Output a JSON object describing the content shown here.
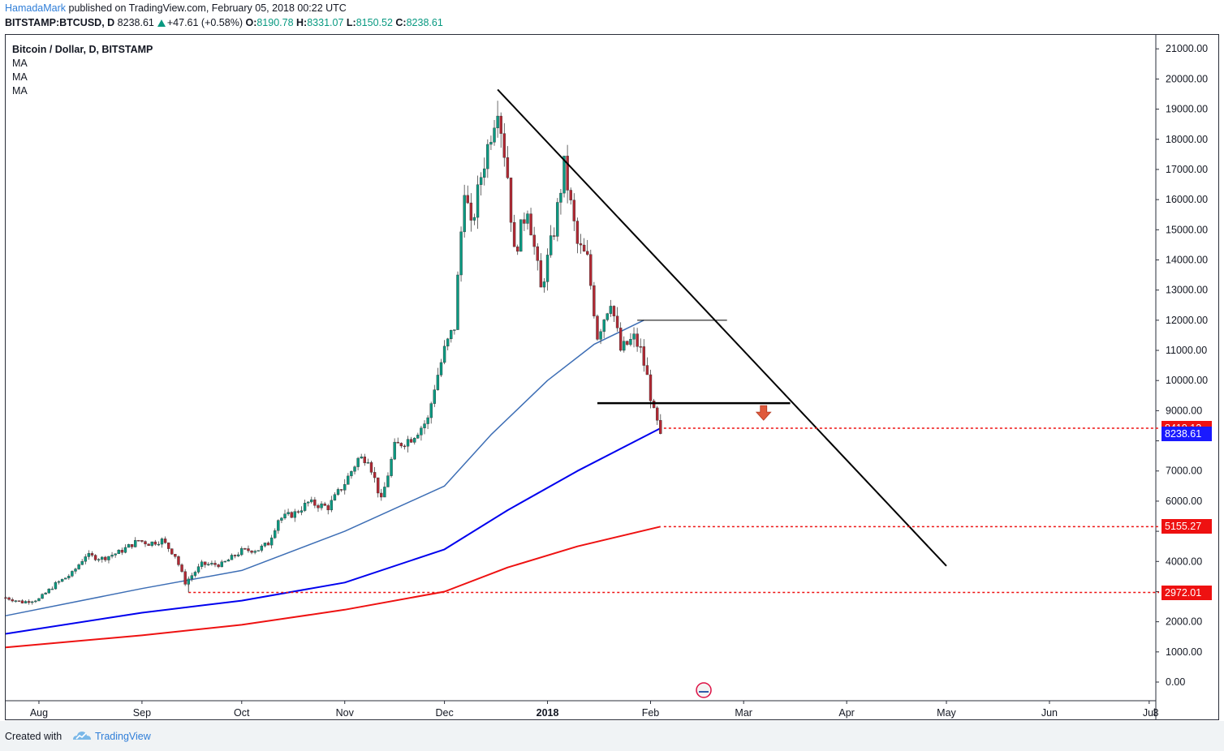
{
  "header": {
    "author": "HamadaMark",
    "published_text": " published on TradingView.com, February 05, 2018 00:22 UTC",
    "symbol_line": "BITSTAMP:BTCUSD, D",
    "last": "8238.61",
    "change": "+47.61 (+0.58%)",
    "open_label": "O:",
    "open": "8190.78",
    "high_label": "H:",
    "high": "8331.07",
    "low_label": "L:",
    "low": "8150.52",
    "close_label": "C:",
    "close": "8238.61"
  },
  "legend": {
    "title": "Bitcoin / Dollar, D, BITSTAMP",
    "items": [
      "MA",
      "MA",
      "MA"
    ]
  },
  "footer": {
    "created_with": "Created with",
    "brand": "TradingView"
  },
  "colors": {
    "up": "#089981",
    "down": "#b22833",
    "ma_fast": "#3d6eb5",
    "ma_mid": "#0000ee",
    "ma_slow": "#ee1111",
    "level": "#ee1111",
    "price_marker": "#1a1aff"
  },
  "chart_data": {
    "type": "candlestick",
    "title": "Bitcoin / Dollar, D, BITSTAMP",
    "y_axis": {
      "min": -500,
      "max": 21500,
      "ticks": [
        0,
        1000,
        2000,
        3000,
        4000,
        5000,
        6000,
        7000,
        8000,
        9000,
        10000,
        11000,
        12000,
        13000,
        14000,
        15000,
        16000,
        17000,
        18000,
        19000,
        20000,
        21000
      ],
      "tick_labels": [
        "0.00",
        "1000.00",
        "2000.00",
        "",
        "4000.00",
        "",
        "6000.00",
        "7000.00",
        "",
        "9000.00",
        "10000.00",
        "11000.00",
        "12000.00",
        "13000.00",
        "14000.00",
        "15000.00",
        "16000.00",
        "17000.00",
        "18000.00",
        "19000.00",
        "20000.00",
        "21000.00"
      ]
    },
    "x_axis": {
      "start": "2017-07-22",
      "end": "2018-07-03",
      "ticks": [
        {
          "date": "2017-08-01",
          "label": "Aug",
          "bold": false
        },
        {
          "date": "2017-09-01",
          "label": "Sep",
          "bold": false
        },
        {
          "date": "2017-10-01",
          "label": "Oct",
          "bold": false
        },
        {
          "date": "2017-11-01",
          "label": "Nov",
          "bold": false
        },
        {
          "date": "2017-12-01",
          "label": "Dec",
          "bold": false
        },
        {
          "date": "2018-01-01",
          "label": "2018",
          "bold": true
        },
        {
          "date": "2018-02-01",
          "label": "Feb",
          "bold": false
        },
        {
          "date": "2018-03-01",
          "label": "Mar",
          "bold": false
        },
        {
          "date": "2018-04-01",
          "label": "Apr",
          "bold": false
        },
        {
          "date": "2018-05-01",
          "label": "May",
          "bold": false
        },
        {
          "date": "2018-06-01",
          "label": "Jun",
          "bold": false
        },
        {
          "date": "2018-07-01",
          "label": "Jul",
          "bold": false
        },
        {
          "date": "2018-07-03",
          "label": "3",
          "bold": false
        }
      ]
    },
    "closes": [
      {
        "date": "2017-07-22",
        "close": 2800
      },
      {
        "date": "2017-07-27",
        "close": 2650
      },
      {
        "date": "2017-08-01",
        "close": 2750
      },
      {
        "date": "2017-08-06",
        "close": 3250
      },
      {
        "date": "2017-08-11",
        "close": 3600
      },
      {
        "date": "2017-08-15",
        "close": 4200
      },
      {
        "date": "2017-08-20",
        "close": 4100
      },
      {
        "date": "2017-08-25",
        "close": 4300
      },
      {
        "date": "2017-08-31",
        "close": 4700
      },
      {
        "date": "2017-09-03",
        "close": 4600
      },
      {
        "date": "2017-09-07",
        "close": 4700
      },
      {
        "date": "2017-09-11",
        "close": 4200
      },
      {
        "date": "2017-09-14",
        "close": 3300
      },
      {
        "date": "2017-09-19",
        "close": 3900
      },
      {
        "date": "2017-09-25",
        "close": 3900
      },
      {
        "date": "2017-10-01",
        "close": 4350
      },
      {
        "date": "2017-10-06",
        "close": 4400
      },
      {
        "date": "2017-10-09",
        "close": 4600
      },
      {
        "date": "2017-10-12",
        "close": 5400
      },
      {
        "date": "2017-10-17",
        "close": 5600
      },
      {
        "date": "2017-10-21",
        "close": 5950
      },
      {
        "date": "2017-10-27",
        "close": 5800
      },
      {
        "date": "2017-11-01",
        "close": 6600
      },
      {
        "date": "2017-11-05",
        "close": 7400
      },
      {
        "date": "2017-11-08",
        "close": 7450
      },
      {
        "date": "2017-11-12",
        "close": 6000
      },
      {
        "date": "2017-11-16",
        "close": 7800
      },
      {
        "date": "2017-11-21",
        "close": 8100
      },
      {
        "date": "2017-11-26",
        "close": 8700
      },
      {
        "date": "2017-11-28",
        "close": 9800
      },
      {
        "date": "2017-12-01",
        "close": 11000
      },
      {
        "date": "2017-12-04",
        "close": 11800
      },
      {
        "date": "2017-12-07",
        "close": 16500
      },
      {
        "date": "2017-12-09",
        "close": 15000
      },
      {
        "date": "2017-12-12",
        "close": 16800
      },
      {
        "date": "2017-12-17",
        "close": 19200
      },
      {
        "date": "2017-12-20",
        "close": 16800
      },
      {
        "date": "2017-12-22",
        "close": 14200
      },
      {
        "date": "2017-12-26",
        "close": 15800
      },
      {
        "date": "2017-12-30",
        "close": 13000
      },
      {
        "date": "2018-01-03",
        "close": 15000
      },
      {
        "date": "2018-01-06",
        "close": 17100
      },
      {
        "date": "2018-01-10",
        "close": 14500
      },
      {
        "date": "2018-01-13",
        "close": 14000
      },
      {
        "date": "2018-01-16",
        "close": 11500
      },
      {
        "date": "2018-01-20",
        "close": 12700
      },
      {
        "date": "2018-01-23",
        "close": 11000
      },
      {
        "date": "2018-01-27",
        "close": 11400
      },
      {
        "date": "2018-01-29",
        "close": 11000
      },
      {
        "date": "2018-01-31",
        "close": 10100
      },
      {
        "date": "2018-02-02",
        "close": 8900
      },
      {
        "date": "2018-02-04",
        "close": 8238.61
      }
    ],
    "moving_averages": [
      {
        "name": "MA",
        "color": "#3d6eb5",
        "points": [
          {
            "date": "2017-07-22",
            "value": 2200
          },
          {
            "date": "2017-09-01",
            "value": 3100
          },
          {
            "date": "2017-10-01",
            "value": 3700
          },
          {
            "date": "2017-11-01",
            "value": 5000
          },
          {
            "date": "2017-12-01",
            "value": 6500
          },
          {
            "date": "2017-12-15",
            "value": 8200
          },
          {
            "date": "2018-01-01",
            "value": 10000
          },
          {
            "date": "2018-01-15",
            "value": 11200
          },
          {
            "date": "2018-01-30",
            "value": 12000
          }
        ]
      },
      {
        "name": "MA",
        "color": "#0000ee",
        "points": [
          {
            "date": "2017-07-22",
            "value": 1600
          },
          {
            "date": "2017-09-01",
            "value": 2300
          },
          {
            "date": "2017-10-01",
            "value": 2700
          },
          {
            "date": "2017-11-01",
            "value": 3300
          },
          {
            "date": "2017-12-01",
            "value": 4400
          },
          {
            "date": "2017-12-20",
            "value": 5700
          },
          {
            "date": "2018-01-10",
            "value": 7000
          },
          {
            "date": "2018-02-04",
            "value": 8419.12
          }
        ]
      },
      {
        "name": "MA",
        "color": "#ee1111",
        "points": [
          {
            "date": "2017-07-22",
            "value": 1150
          },
          {
            "date": "2017-09-01",
            "value": 1550
          },
          {
            "date": "2017-10-01",
            "value": 1900
          },
          {
            "date": "2017-11-01",
            "value": 2400
          },
          {
            "date": "2017-12-01",
            "value": 3000
          },
          {
            "date": "2017-12-20",
            "value": 3800
          },
          {
            "date": "2018-01-10",
            "value": 4500
          },
          {
            "date": "2018-02-04",
            "value": 5155.27
          }
        ]
      }
    ],
    "drawings": {
      "trendline": {
        "from": {
          "date": "2017-12-17",
          "value": 19650
        },
        "to": {
          "date": "2018-05-01",
          "value": 3850
        }
      },
      "resistance_line": {
        "from": {
          "date": "2018-01-28",
          "value": 12000
        },
        "to": {
          "date": "2018-02-24",
          "value": 12000
        }
      },
      "support_line": {
        "from": {
          "date": "2018-01-16",
          "value": 9250
        },
        "to": {
          "date": "2018-03-15",
          "value": 9250
        }
      },
      "down_arrow": {
        "date": "2018-03-07",
        "value": 8900
      }
    },
    "levels": [
      {
        "value": 8419.12,
        "label": "8419.12",
        "from": "2018-02-05",
        "color": "#ee1111"
      },
      {
        "value": 5155.27,
        "label": "5155.27",
        "from": "2018-02-05",
        "color": "#ee1111"
      },
      {
        "value": 2972.01,
        "label": "2972.01",
        "from": "2017-09-15",
        "color": "#ee1111"
      }
    ],
    "last_price": {
      "value": 8238.61,
      "label": "8238.61",
      "color": "#1a1aff"
    }
  }
}
